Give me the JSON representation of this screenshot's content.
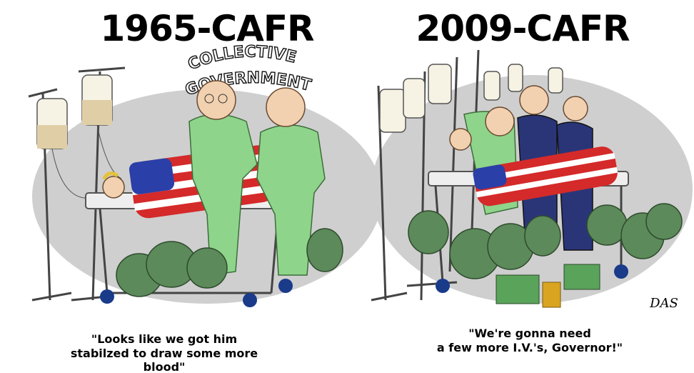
{
  "panels": [
    {
      "title": "1965-CAFR",
      "banner": [
        "COLLECTIVE",
        "GOVERNMENT"
      ],
      "caption_lines": [
        "\"Looks like we got him",
        "stabilzed to draw some more",
        "blood\""
      ]
    },
    {
      "title": "2009-CAFR",
      "signature": "DAS",
      "caption_lines": [
        "\"We're gonna need",
        "a few more I.V.'s, Governor!\""
      ]
    }
  ]
}
